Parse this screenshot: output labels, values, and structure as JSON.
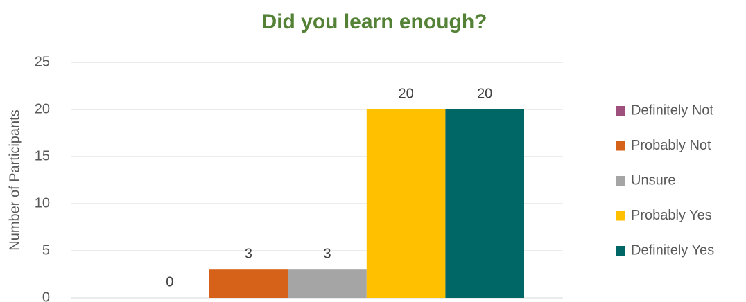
{
  "chart_data": {
    "type": "bar",
    "title": "Did you learn enough?",
    "y_label": "Number of Participants",
    "categories": [
      null
    ],
    "series": [
      {
        "name": "Definitely Not",
        "color": "#9e4f7b",
        "values": [
          0
        ]
      },
      {
        "name": "Probably Not",
        "color": "#d6621a",
        "values": [
          3
        ]
      },
      {
        "name": "Unsure",
        "color": "#a5a5a5",
        "values": [
          3
        ]
      },
      {
        "name": "Probably Yes",
        "color": "#ffc000",
        "values": [
          20
        ]
      },
      {
        "name": "Definitely Yes",
        "color": "#006666",
        "values": [
          20
        ]
      }
    ],
    "ylim": [
      0,
      25
    ],
    "yticks": [
      0,
      5,
      10,
      15,
      20,
      25
    ],
    "grid": true,
    "legend": "right",
    "title_color": "#538135"
  }
}
